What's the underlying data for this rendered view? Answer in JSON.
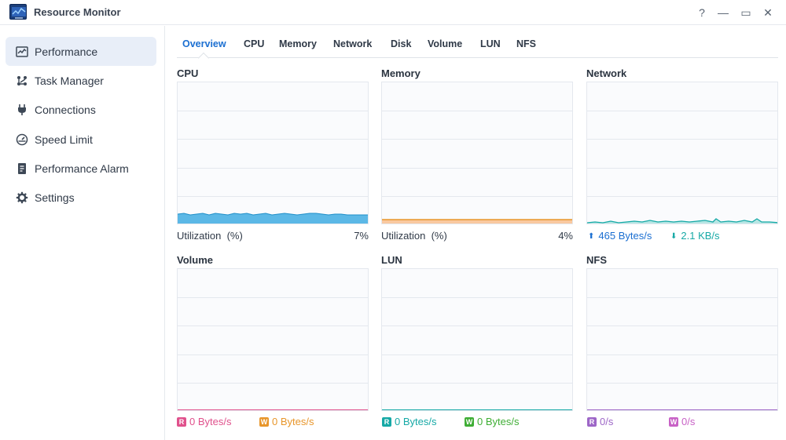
{
  "window": {
    "title": "Resource Monitor",
    "help": "?",
    "minimize": "—",
    "maximize": "▭",
    "close": "✕"
  },
  "sidebar": {
    "items": [
      {
        "label": "Performance",
        "icon": "performance-icon",
        "active": true
      },
      {
        "label": "Task Manager",
        "icon": "task-manager-icon"
      },
      {
        "label": "Connections",
        "icon": "plug-icon"
      },
      {
        "label": "Speed Limit",
        "icon": "gauge-icon"
      },
      {
        "label": "Performance Alarm",
        "icon": "alarm-icon"
      },
      {
        "label": "Settings",
        "icon": "gear-icon"
      }
    ]
  },
  "tabs": [
    "Overview",
    "CPU",
    "Memory",
    "Network",
    "Disk",
    "Volume",
    "LUN",
    "NFS"
  ],
  "active_tab": "Overview",
  "panels": {
    "cpu": {
      "title": "CPU",
      "metric": "Utilization",
      "unit": "(%)",
      "value": "7%",
      "color": "#5cb8e6"
    },
    "memory": {
      "title": "Memory",
      "metric": "Utilization",
      "unit": "(%)",
      "value": "4%",
      "color": "#f5bf8c"
    },
    "network": {
      "title": "Network",
      "up": "465 Bytes/s",
      "down": "2.1 KB/s",
      "up_color": "#1b6fd1",
      "down_color": "#16a9a6"
    },
    "volume": {
      "title": "Volume",
      "read_badge": "R",
      "read": "0 Bytes/s",
      "write_badge": "W",
      "write": "0 Bytes/s",
      "read_color": "#e0518c",
      "write_color": "#e8962b"
    },
    "lun": {
      "title": "LUN",
      "read_badge": "R",
      "read": "0 Bytes/s",
      "write_badge": "W",
      "write": "0 Bytes/s",
      "read_color": "#16a9a6",
      "write_color": "#3fae35"
    },
    "nfs": {
      "title": "NFS",
      "read_badge": "R",
      "read": "0/s",
      "write_badge": "W",
      "write": "0/s",
      "read_color": "#9d66c7",
      "write_color": "#c862c6"
    }
  }
}
